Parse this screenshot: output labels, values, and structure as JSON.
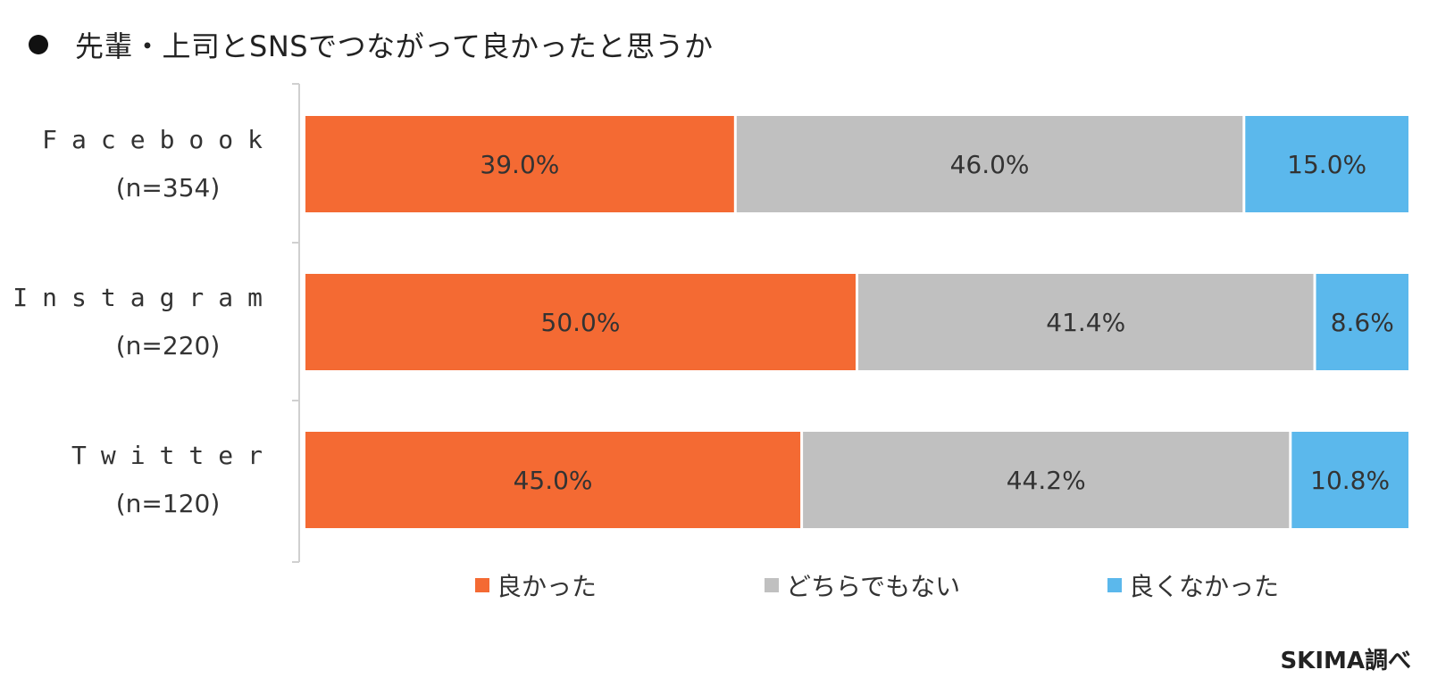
{
  "header": {
    "title": "先輩・上司とSNSでつながって良かったと思うか"
  },
  "footer": {
    "credit": "SKIMA調べ"
  },
  "chart_data": {
    "type": "bar",
    "orientation": "horizontal",
    "stacked": true,
    "percent_stacked": true,
    "title": "先輩・上司とSNSでつながって良かったと思うか",
    "categories": [
      {
        "name": "Facebook",
        "n_label": "(n=354)"
      },
      {
        "name": "Instagram",
        "n_label": "(n=220)"
      },
      {
        "name": "Twitter",
        "n_label": "(n=120)"
      }
    ],
    "series": [
      {
        "name": "良かった",
        "color": "#F46A33",
        "values": [
          39.0,
          50.0,
          45.0
        ],
        "labels": [
          "39.0%",
          "50.0%",
          "45.0%"
        ]
      },
      {
        "name": "どちらでもない",
        "color": "#C0C0C0",
        "values": [
          46.0,
          41.4,
          44.2
        ],
        "labels": [
          "46.0%",
          "41.4%",
          "44.2%"
        ]
      },
      {
        "name": "良くなかった",
        "color": "#5BB8EC",
        "values": [
          15.0,
          8.6,
          10.8
        ],
        "labels": [
          "15.0%",
          "8.6%",
          "10.8%"
        ]
      }
    ],
    "xlim": [
      0,
      100
    ],
    "legend": "bottom",
    "grid": false
  }
}
